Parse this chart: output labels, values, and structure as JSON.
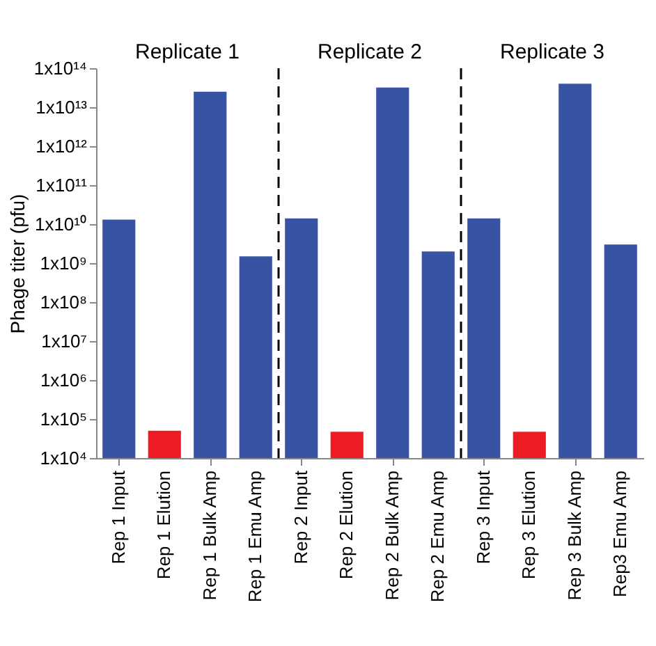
{
  "chart_data": {
    "type": "bar",
    "ylabel": "Phage titer (pfu)",
    "log": true,
    "categories": [
      "Rep 1 Input",
      "Rep 1 Elution",
      "Rep 1 Bulk Amp",
      "Rep 1 Emu Amp",
      "Rep 2 Input",
      "Rep 2 Elution",
      "Rep 2 Bulk Amp",
      "Rep 2 Emu Amp",
      "Rep 3 Input",
      "Rep 3 Elution",
      "Rep 3 Bulk Amp",
      "Rep3 Emu Amp"
    ],
    "values": [
      13000000000.0,
      50000.0,
      25000000000000.0,
      1500000000.0,
      14000000000.0,
      47000.0,
      32000000000000.0,
      2000000000.0,
      14000000000.0,
      47000.0,
      40000000000000.0,
      3000000000.0
    ],
    "colors": [
      "#3953a4",
      "#ed1c24",
      "#3953a4",
      "#3953a4",
      "#3953a4",
      "#ed1c24",
      "#3953a4",
      "#3953a4",
      "#3953a4",
      "#ed1c24",
      "#3953a4",
      "#3953a4"
    ],
    "ylim": [
      10000.0,
      100000000000000.0
    ],
    "yticks": [
      {
        "value": 10000.0,
        "label": "1x10⁴"
      },
      {
        "value": 100000.0,
        "label": "1x10⁵"
      },
      {
        "value": 1000000.0,
        "label": "1x10⁶"
      },
      {
        "value": 10000000.0,
        "label": "1x10⁷"
      },
      {
        "value": 100000000.0,
        "label": "1x10⁸"
      },
      {
        "value": 1000000000.0,
        "label": "1x10⁹"
      },
      {
        "value": 10000000000.0,
        "label": "1x10¹⁰"
      },
      {
        "value": 100000000000.0,
        "label": "1x10¹¹"
      },
      {
        "value": 1000000000000.0,
        "label": "1x10¹²"
      },
      {
        "value": 10000000000000.0,
        "label": "1x10¹³"
      },
      {
        "value": 100000000000000.0,
        "label": "1x10¹⁴"
      }
    ],
    "annotations": [
      "Replicate 1",
      "Replicate 2",
      "Replicate 3"
    ],
    "grid": false
  }
}
